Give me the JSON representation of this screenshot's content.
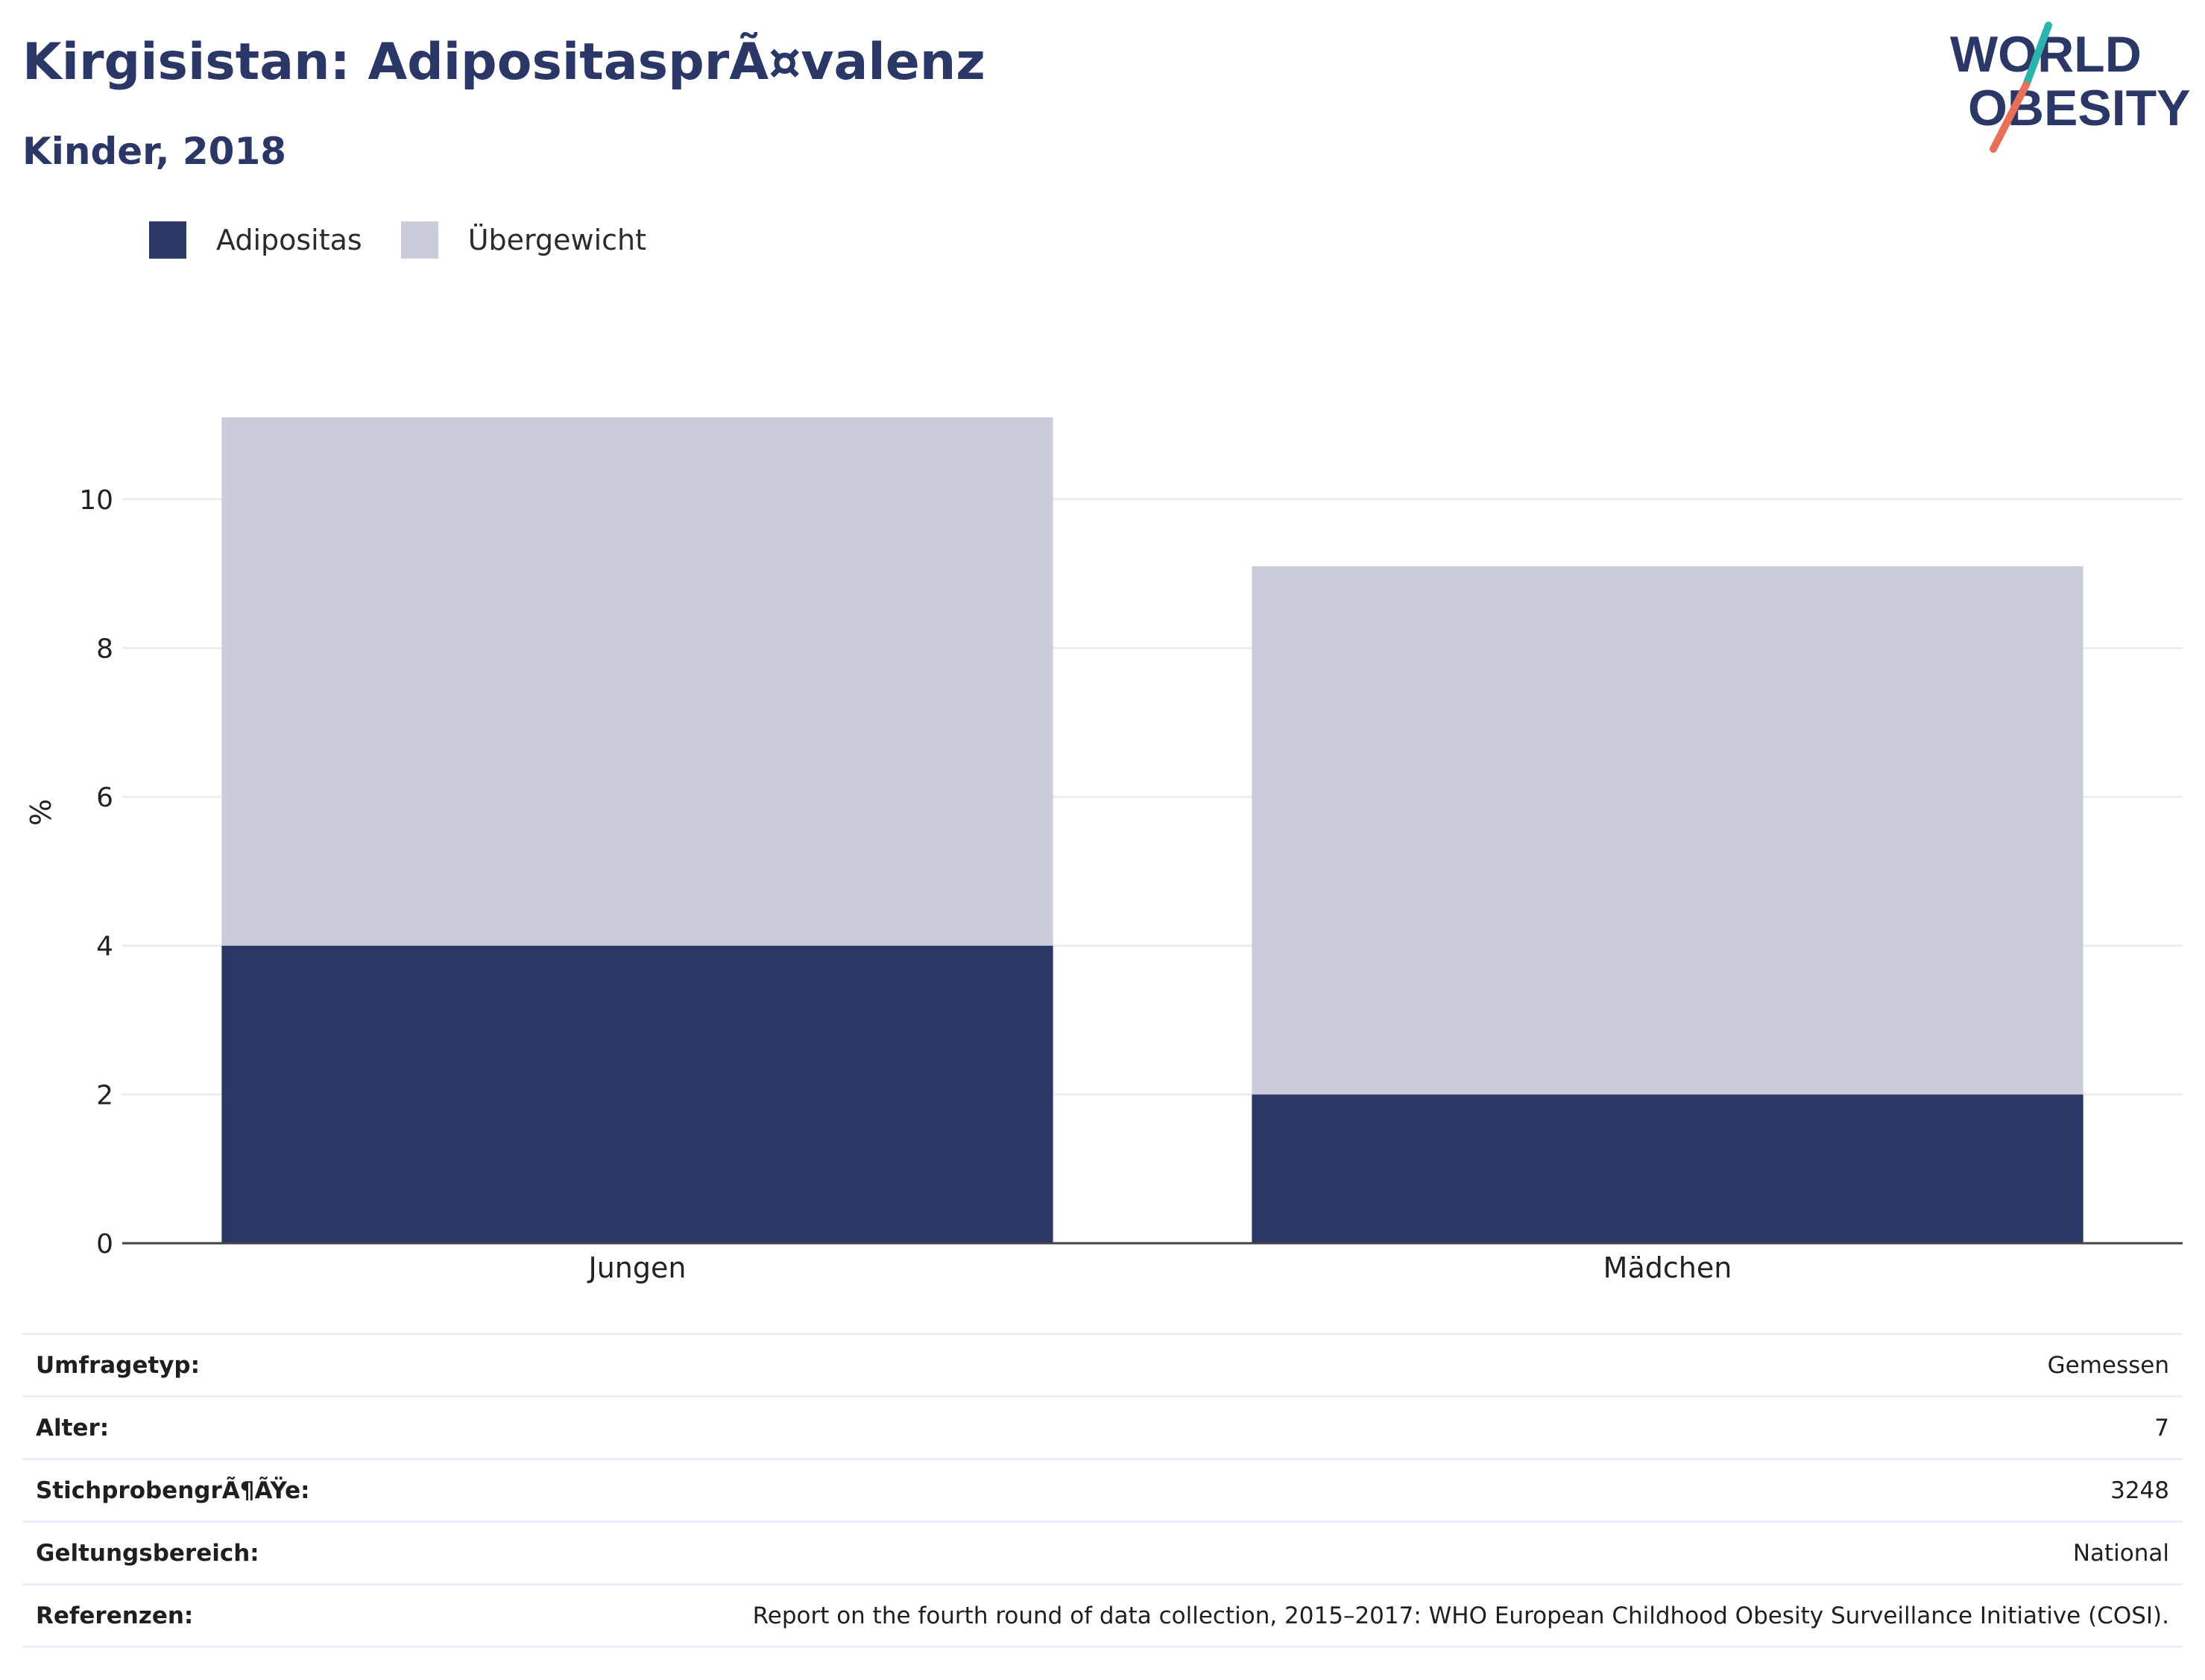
{
  "header": {
    "title": "Kirgisistan: AdipositasprÃ¤valenz",
    "subtitle": "Kinder, 2018"
  },
  "logo": {
    "line1": "WORLD",
    "line2": "OBESITY",
    "colors": {
      "text": "#2b3766",
      "teal": "#2bb3ad",
      "coral": "#e8705a"
    }
  },
  "legend": [
    {
      "label": "Adipositas",
      "color": "#2b3766"
    },
    {
      "label": "Übergewicht",
      "color": "#cacdd9"
    }
  ],
  "chart_data": {
    "type": "bar",
    "stacked": true,
    "categories": [
      "Jungen",
      "Mädchen"
    ],
    "series": [
      {
        "name": "Adipositas",
        "values": [
          4.0,
          2.0
        ],
        "color": "#2b3766"
      },
      {
        "name": "Übergewicht",
        "values": [
          7.1,
          7.1
        ],
        "color": "#cacdd9"
      }
    ],
    "ylabel": "%",
    "ylim": [
      0,
      11.1
    ],
    "yticks": [
      0,
      2,
      4,
      6,
      8,
      10
    ],
    "grid": true,
    "legend_position": "top-left"
  },
  "info": [
    {
      "key": "Umfragetyp:",
      "value": "Gemessen"
    },
    {
      "key": "Alter:",
      "value": "7"
    },
    {
      "key": "StichprobengrÃ¶ÃŸe:",
      "value": "3248"
    },
    {
      "key": "Geltungsbereich:",
      "value": "National"
    },
    {
      "key": "Referenzen:",
      "value": "Report on the fourth round of data collection, 2015–2017: WHO European Childhood Obesity Surveillance Initiative (COSI)."
    }
  ]
}
